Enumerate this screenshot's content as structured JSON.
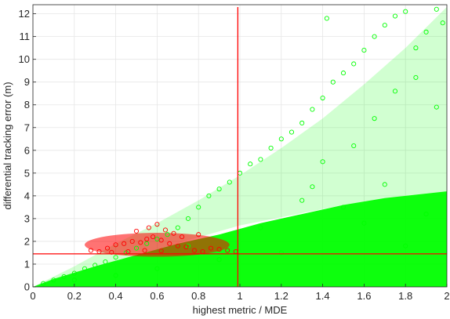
{
  "chart_data": {
    "type": "scatter",
    "title": "",
    "xlabel": "highest metric / MDE",
    "ylabel": "differential tracking error (m)",
    "xlim": [
      0,
      2
    ],
    "ylim": [
      0,
      12.4
    ],
    "grid": true,
    "x_ticks": [
      0,
      0.2,
      0.4,
      0.6,
      0.8,
      1,
      1.2,
      1.4,
      1.6,
      1.8,
      2
    ],
    "x_tick_labels": [
      "0",
      "0.2",
      "0.4",
      "0.6",
      "0.8",
      "1",
      "1.2",
      "1.4",
      "1.6",
      "1.8",
      "2"
    ],
    "y_ticks": [
      0,
      1,
      2,
      3,
      4,
      5,
      6,
      7,
      8,
      9,
      10,
      11,
      12
    ],
    "y_tick_labels": [
      "0",
      "1",
      "2",
      "3",
      "4",
      "5",
      "6",
      "7",
      "8",
      "9",
      "10",
      "11",
      "12"
    ],
    "series": [
      {
        "color": "#00ff00",
        "marker": "open-circle",
        "points": [
          [
            0.05,
            0.15
          ],
          [
            0.1,
            0.3
          ],
          [
            0.15,
            0.45
          ],
          [
            0.2,
            0.6
          ],
          [
            0.25,
            0.8
          ],
          [
            0.3,
            0.95
          ],
          [
            0.35,
            1.1
          ],
          [
            0.4,
            1.3
          ],
          [
            0.45,
            1.5
          ],
          [
            0.5,
            1.7
          ],
          [
            0.55,
            1.9
          ],
          [
            0.6,
            2.1
          ],
          [
            0.65,
            2.3
          ],
          [
            0.7,
            2.6
          ],
          [
            0.75,
            3.0
          ],
          [
            0.8,
            3.5
          ],
          [
            0.85,
            4.0
          ],
          [
            0.9,
            4.3
          ],
          [
            0.95,
            4.6
          ],
          [
            1.0,
            5.0
          ],
          [
            1.05,
            5.4
          ],
          [
            1.1,
            5.6
          ],
          [
            1.15,
            6.1
          ],
          [
            1.2,
            6.5
          ],
          [
            1.25,
            6.8
          ],
          [
            1.3,
            7.2
          ],
          [
            1.35,
            7.8
          ],
          [
            1.4,
            8.3
          ],
          [
            1.45,
            9.0
          ],
          [
            1.5,
            9.4
          ],
          [
            1.55,
            9.8
          ],
          [
            1.6,
            10.4
          ],
          [
            1.65,
            11.0
          ],
          [
            1.7,
            11.5
          ],
          [
            1.75,
            11.9
          ],
          [
            1.8,
            12.1
          ],
          [
            1.85,
            10.5
          ],
          [
            1.9,
            11.2
          ],
          [
            1.95,
            12.2
          ],
          [
            1.98,
            11.6
          ],
          [
            1.42,
            11.8
          ],
          [
            1.5,
            3.5
          ],
          [
            1.6,
            2.8
          ],
          [
            1.7,
            4.5
          ],
          [
            1.8,
            1.8
          ],
          [
            1.9,
            3.2
          ],
          [
            1.2,
            1.5
          ],
          [
            1.1,
            2.6
          ],
          [
            1.3,
            3.8
          ],
          [
            1.4,
            5.5
          ],
          [
            0.9,
            1.2
          ],
          [
            0.75,
            1.8
          ],
          [
            0.6,
            0.8
          ],
          [
            0.4,
            0.5
          ],
          [
            0.2,
            0.3
          ],
          [
            1.55,
            6.2
          ],
          [
            1.65,
            7.4
          ],
          [
            1.75,
            8.6
          ],
          [
            1.85,
            9.2
          ],
          [
            1.95,
            7.9
          ],
          [
            1.35,
            4.4
          ]
        ]
      },
      {
        "color": "#ff0000",
        "marker": "open-circle",
        "points": [
          [
            0.28,
            1.6
          ],
          [
            0.32,
            1.55
          ],
          [
            0.36,
            1.7
          ],
          [
            0.4,
            1.85
          ],
          [
            0.44,
            1.9
          ],
          [
            0.48,
            2.0
          ],
          [
            0.52,
            1.95
          ],
          [
            0.55,
            2.1
          ],
          [
            0.58,
            2.2
          ],
          [
            0.62,
            2.05
          ],
          [
            0.66,
            1.9
          ],
          [
            0.7,
            1.8
          ],
          [
            0.74,
            1.75
          ],
          [
            0.78,
            1.6
          ],
          [
            0.82,
            1.55
          ],
          [
            0.86,
            1.7
          ],
          [
            0.9,
            1.65
          ],
          [
            0.94,
            1.6
          ],
          [
            0.98,
            1.55
          ],
          [
            0.5,
            2.45
          ],
          [
            0.56,
            2.6
          ],
          [
            0.6,
            2.75
          ],
          [
            0.64,
            2.5
          ],
          [
            0.68,
            2.35
          ],
          [
            0.54,
            1.6
          ],
          [
            0.46,
            1.55
          ],
          [
            0.38,
            1.52
          ],
          [
            0.62,
            1.58
          ],
          [
            0.72,
            2.2
          ],
          [
            0.8,
            2.3
          ]
        ]
      }
    ],
    "reference_lines": [
      {
        "orientation": "vertical",
        "x": 0.99,
        "color": "#ff0000"
      },
      {
        "orientation": "horizontal",
        "y": 1.45,
        "color": "#ff0000"
      }
    ]
  }
}
